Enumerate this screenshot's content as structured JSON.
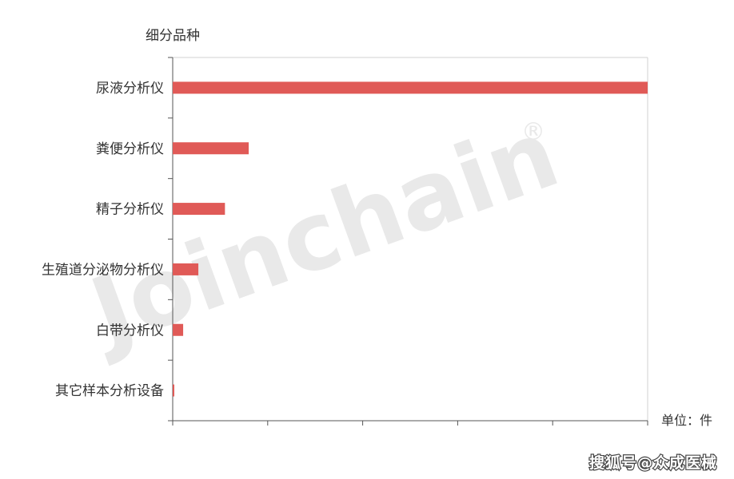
{
  "chart_data": {
    "type": "bar",
    "orientation": "horizontal",
    "title": "",
    "ylabel": "细分品种",
    "xlabel": "单位：件",
    "categories": [
      "尿液分析仪",
      "粪便分析仪",
      "精子分析仪",
      "生殖道分泌物分析仪",
      "白带分析仪",
      "其它样本分析设备"
    ],
    "values": [
      5000,
      800,
      550,
      270,
      110,
      10
    ],
    "xlim": [
      0,
      5000
    ],
    "x_tick_count": 5,
    "x_tick_labels_shown": false,
    "grid": false,
    "legend": "none",
    "bar_color": "#e05a57"
  },
  "watermark": {
    "text": "Joinchain",
    "mark": "®",
    "color": "#e9e9e9"
  },
  "source": "搜狐号@众成医械"
}
